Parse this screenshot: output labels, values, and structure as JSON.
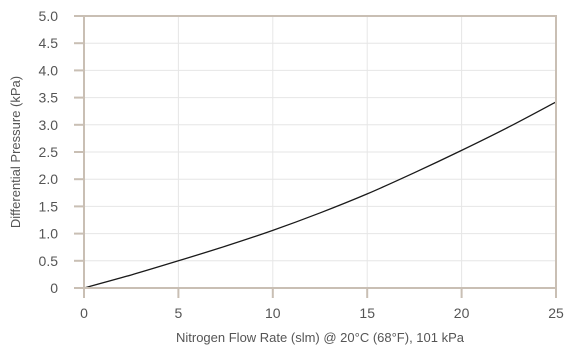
{
  "chart_data": {
    "type": "line",
    "title": "",
    "xlabel": "Nitrogen Flow Rate (slm) @ 20°C (68°F), 101 kPa",
    "ylabel": "Differential Pressure (kPa)",
    "xlim": [
      0,
      25
    ],
    "ylim": [
      0,
      5.0
    ],
    "grid": true,
    "x_ticks": [
      0,
      5,
      10,
      15,
      20,
      25
    ],
    "x_tick_labels": [
      "0",
      "5",
      "10",
      "15",
      "20",
      "25"
    ],
    "y_ticks": [
      0,
      0.5,
      1.0,
      1.5,
      2.0,
      2.5,
      3.0,
      3.5,
      4.0,
      4.5,
      5.0
    ],
    "y_tick_labels": [
      "0",
      "0.5",
      "1.0",
      "1.5",
      "2.0",
      "2.5",
      "3.0",
      "3.5",
      "4.0",
      "4.5",
      "5.0"
    ],
    "series": [
      {
        "x": [
          0,
          2.5,
          5,
          7.5,
          10,
          12.5,
          15,
          17.5,
          20,
          22.5,
          25
        ],
        "y": [
          0,
          0.24,
          0.5,
          0.77,
          1.06,
          1.38,
          1.73,
          2.12,
          2.53,
          2.96,
          3.42
        ]
      }
    ],
    "colors": {
      "frame": "#c9bfb4",
      "grid": "#e6e6e6",
      "line": "#1a1a1a",
      "text": "#555555"
    }
  }
}
